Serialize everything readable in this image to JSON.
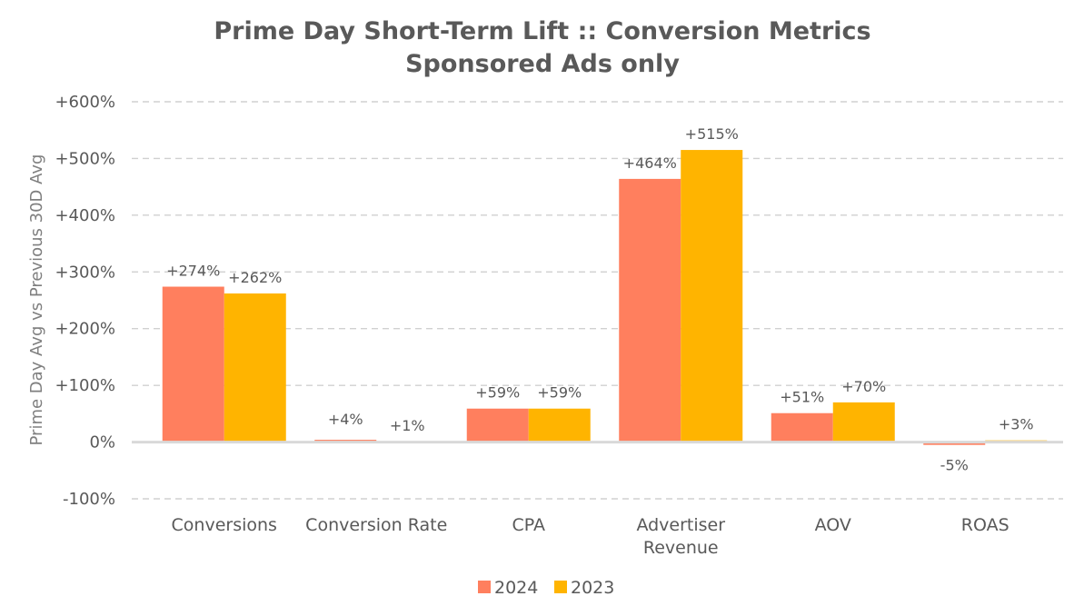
{
  "chart_data": {
    "type": "bar",
    "title": "Prime Day Short-Term Lift :: Conversion Metrics",
    "subtitle": "Sponsored Ads only",
    "ylabel": "Prime Day Avg vs Previous 30D Avg",
    "xlabel": "",
    "ylim": [
      -100,
      600
    ],
    "yticks": [
      -100,
      0,
      100,
      200,
      300,
      400,
      500,
      600
    ],
    "ytick_labels": [
      "-100%",
      "0%",
      "+100%",
      "+200%",
      "+300%",
      "+400%",
      "+500%",
      "+600%"
    ],
    "grid": true,
    "legend_position": "bottom",
    "categories": [
      [
        "Conversions"
      ],
      [
        "Conversion Rate"
      ],
      [
        "CPA"
      ],
      [
        "Advertiser",
        "Revenue"
      ],
      [
        "AOV"
      ],
      [
        "ROAS"
      ]
    ],
    "series": [
      {
        "name": "2024",
        "color": "#FF7F5E",
        "values": [
          274,
          4,
          59,
          464,
          51,
          -5
        ],
        "labels": [
          "+274%",
          "+4%",
          "+59%",
          "+464%",
          "+51%",
          "-5%"
        ]
      },
      {
        "name": "2023",
        "color": "#FFB400",
        "values": [
          262,
          1,
          59,
          515,
          70,
          3
        ],
        "labels": [
          "+262%",
          "+1%",
          "+59%",
          "+515%",
          "+70%",
          "+3%"
        ]
      }
    ]
  }
}
